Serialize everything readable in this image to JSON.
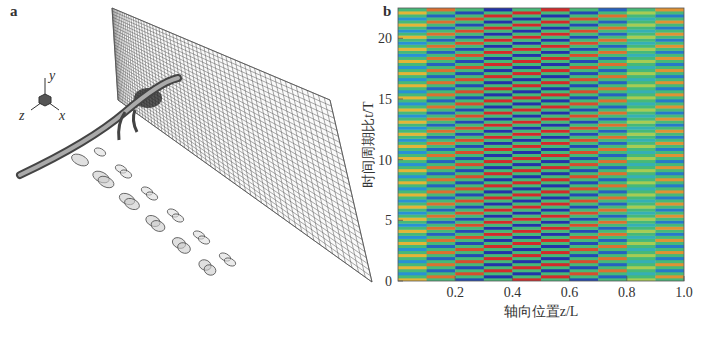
{
  "chart_data": [
    {
      "type": "image",
      "panel": "a",
      "axis_labels": [
        "y",
        "z",
        "x"
      ]
    },
    {
      "type": "heatmap",
      "panel": "b",
      "xlabel": "轴向位置z/L",
      "ylabel": "时间周期比t/T",
      "xlim": [
        0,
        1
      ],
      "ylim": [
        0,
        22.5
      ],
      "xticks": [
        0.2,
        0.4,
        0.6,
        0.8,
        {
          "value": 1,
          "label": "1.0"
        }
      ],
      "yticks": [
        0,
        5,
        10,
        15,
        20
      ],
      "zlim": [
        -1,
        1
      ],
      "x": [
        0.05,
        0.15,
        0.25,
        0.35,
        0.45,
        0.55,
        0.65,
        0.75,
        0.85,
        0.95
      ],
      "y": [
        0.125,
        0.375,
        0.625,
        0.875,
        1.125,
        1.375,
        1.625,
        1.875,
        2.125,
        2.375,
        2.625,
        2.875,
        3.125,
        3.375,
        3.625,
        3.875,
        4.125,
        4.375,
        4.625,
        4.875,
        5.125,
        5.375,
        5.625,
        5.875,
        6.125,
        6.375,
        6.625,
        6.875,
        7.125,
        7.375,
        7.625,
        7.875,
        8.125,
        8.375,
        8.625,
        8.875,
        9.125,
        9.375,
        9.625,
        9.875,
        10.125,
        10.375,
        10.625,
        10.875,
        11.125,
        11.375,
        11.625,
        11.875,
        12.125,
        12.375,
        12.625,
        12.875,
        13.125,
        13.375,
        13.625,
        13.875,
        14.125,
        14.375,
        14.625,
        14.875,
        15.125,
        15.375,
        15.625,
        15.875,
        16.125,
        16.375,
        16.625,
        16.875,
        17.125,
        17.375,
        17.625,
        17.875,
        18.125,
        18.375,
        18.625,
        18.875,
        19.125,
        19.375,
        19.625,
        19.875,
        20.125,
        20.375,
        20.625,
        20.875,
        21.125,
        21.375,
        21.625,
        21.875,
        22.125,
        22.375
      ],
      "cells": [
        [
          0.6,
          0,
          -0.9,
          0,
          1,
          0,
          -0.9,
          0,
          0.3,
          0
        ],
        [
          0,
          0.8,
          0,
          -1,
          0,
          1,
          0,
          -0.8,
          0,
          0.7
        ],
        [
          -0.6,
          0,
          0.9,
          0,
          -1,
          0,
          0.9,
          0,
          -0.3,
          0
        ],
        [
          0,
          -0.8,
          0,
          1,
          0,
          -1,
          0,
          0.8,
          0,
          -0.7
        ],
        [
          0.6,
          0,
          -0.9,
          0,
          1,
          0,
          -0.9,
          0,
          0.3,
          0
        ],
        [
          0,
          0.8,
          0,
          -1,
          0,
          1,
          0,
          -0.8,
          0,
          0.7
        ],
        [
          -0.6,
          0,
          0.9,
          0,
          -1,
          0,
          0.9,
          0,
          -0.3,
          0
        ],
        [
          0,
          -0.8,
          0,
          1,
          0,
          -1,
          0,
          0.8,
          0,
          -0.7
        ],
        [
          0.6,
          0,
          -0.9,
          0,
          1,
          0,
          -0.9,
          0,
          0.3,
          0
        ],
        [
          0,
          0.8,
          0,
          -1,
          0,
          1,
          0,
          -0.8,
          0,
          0.7
        ],
        [
          -0.6,
          0,
          0.9,
          0,
          -1,
          0,
          0.9,
          0,
          -0.3,
          0
        ],
        [
          0,
          -0.8,
          0,
          1,
          0,
          -1,
          0,
          0.8,
          0,
          -0.7
        ],
        [
          0.6,
          0,
          -0.9,
          0,
          1,
          0,
          -0.9,
          0,
          0.3,
          0
        ],
        [
          0,
          0.8,
          0,
          -1,
          0,
          1,
          0,
          -0.8,
          0,
          0.7
        ],
        [
          -0.6,
          0,
          0.9,
          0,
          -1,
          0,
          0.9,
          0,
          -0.3,
          0
        ],
        [
          0,
          -0.8,
          0,
          1,
          0,
          -1,
          0,
          0.8,
          0,
          -0.7
        ],
        [
          0.6,
          0,
          -0.9,
          0,
          1,
          0,
          -0.9,
          0,
          0.3,
          0
        ],
        [
          0,
          0.8,
          0,
          -1,
          0,
          1,
          0,
          -0.8,
          0,
          0.7
        ],
        [
          -0.6,
          0,
          0.9,
          0,
          -1,
          0,
          0.9,
          0,
          -0.3,
          0
        ],
        [
          0,
          -0.8,
          0,
          1,
          0,
          -1,
          0,
          0.8,
          0,
          -0.7
        ],
        [
          0.6,
          0,
          -0.9,
          0,
          1,
          0,
          -0.9,
          0,
          0.3,
          0
        ],
        [
          0,
          0.8,
          0,
          -1,
          0,
          1,
          0,
          -0.8,
          0,
          0.7
        ],
        [
          -0.6,
          0,
          0.9,
          0,
          -1,
          0,
          0.9,
          0,
          -0.3,
          0
        ],
        [
          0,
          -0.8,
          0,
          1,
          0,
          -1,
          0,
          0.8,
          0,
          -0.7
        ],
        [
          0.6,
          0,
          -0.9,
          0,
          1,
          0,
          -0.9,
          0,
          0.3,
          0
        ],
        [
          0,
          0.8,
          0,
          -1,
          0,
          1,
          0,
          -0.8,
          0,
          0.7
        ],
        [
          -0.6,
          0,
          0.9,
          0,
          -1,
          0,
          0.9,
          0,
          -0.3,
          0
        ],
        [
          0,
          -0.8,
          0,
          1,
          0,
          -1,
          0,
          0.8,
          0,
          -0.7
        ],
        [
          0.6,
          0,
          -0.9,
          0,
          1,
          0,
          -0.9,
          0,
          0.3,
          0
        ],
        [
          0,
          0.8,
          0,
          -1,
          0,
          1,
          0,
          -0.8,
          0,
          0.7
        ],
        [
          -0.6,
          0,
          0.9,
          0,
          -1,
          0,
          0.9,
          0,
          -0.3,
          0
        ],
        [
          0,
          -0.8,
          0,
          1,
          0,
          -1,
          0,
          0.8,
          0,
          -0.7
        ],
        [
          0.6,
          0,
          -0.9,
          0,
          1,
          0,
          -0.9,
          0,
          0.3,
          0
        ],
        [
          0,
          0.8,
          0,
          -1,
          0,
          1,
          0,
          -0.8,
          0,
          0.7
        ],
        [
          -0.6,
          0,
          0.9,
          0,
          -1,
          0,
          0.9,
          0,
          -0.3,
          0
        ],
        [
          0,
          -0.8,
          0,
          1,
          0,
          -1,
          0,
          0.8,
          0,
          -0.7
        ],
        [
          0.6,
          0,
          -0.9,
          0,
          1,
          0,
          -0.9,
          0,
          0.3,
          0
        ],
        [
          0,
          0.8,
          0,
          -1,
          0,
          1,
          0,
          -0.8,
          0,
          0.7
        ],
        [
          -0.6,
          0,
          0.9,
          0,
          -1,
          0,
          0.9,
          0,
          -0.3,
          0
        ],
        [
          0,
          -0.8,
          0,
          1,
          0,
          -1,
          0,
          0.8,
          0,
          -0.7
        ],
        [
          0.6,
          0,
          -0.9,
          0,
          1,
          0,
          -0.9,
          0,
          0.3,
          0
        ],
        [
          0,
          0.8,
          0,
          -1,
          0,
          1,
          0,
          -0.8,
          0,
          0.7
        ],
        [
          -0.6,
          0,
          0.9,
          0,
          -1,
          0,
          0.9,
          0,
          -0.3,
          0
        ],
        [
          0,
          -0.8,
          0,
          1,
          0,
          -1,
          0,
          0.8,
          0,
          -0.7
        ],
        [
          0.6,
          0,
          -0.9,
          0,
          1,
          0,
          -0.9,
          0,
          0.3,
          0
        ],
        [
          0,
          0.8,
          0,
          -1,
          0,
          1,
          0,
          -0.8,
          0,
          0.7
        ],
        [
          -0.6,
          0,
          0.9,
          0,
          -1,
          0,
          0.9,
          0,
          -0.3,
          0
        ],
        [
          0,
          -0.8,
          0,
          1,
          0,
          -1,
          0,
          0.8,
          0,
          -0.7
        ],
        [
          0.6,
          0,
          -0.9,
          0,
          1,
          0,
          -0.9,
          0,
          0.3,
          0
        ],
        [
          0,
          0.8,
          0,
          -1,
          0,
          1,
          0,
          -0.8,
          0,
          0.7
        ],
        [
          -0.6,
          0,
          0.9,
          0,
          -1,
          0,
          0.9,
          0,
          -0.3,
          0
        ],
        [
          0,
          -0.8,
          0,
          1,
          0,
          -1,
          0,
          0.8,
          0,
          -0.7
        ],
        [
          0.6,
          0,
          -0.9,
          0,
          1,
          0,
          -0.9,
          0,
          0.3,
          0
        ],
        [
          0,
          0.8,
          0,
          -1,
          0,
          1,
          0,
          -0.8,
          0,
          0.7
        ],
        [
          -0.6,
          0,
          0.9,
          0,
          -1,
          0,
          0.9,
          0,
          -0.3,
          0
        ],
        [
          0,
          -0.8,
          0,
          1,
          0,
          -1,
          0,
          0.8,
          0,
          -0.7
        ],
        [
          0.6,
          0,
          -0.9,
          0,
          1,
          0,
          -0.9,
          0,
          0.3,
          0
        ],
        [
          0,
          0.8,
          0,
          -1,
          0,
          1,
          0,
          -0.8,
          0,
          0.7
        ],
        [
          -0.6,
          0,
          0.9,
          0,
          -1,
          0,
          0.9,
          0,
          -0.3,
          0
        ],
        [
          0,
          -0.8,
          0,
          1,
          0,
          -1,
          0,
          0.8,
          0,
          -0.7
        ],
        [
          0.6,
          0,
          -0.9,
          0,
          1,
          0,
          -0.9,
          0,
          0.3,
          0
        ],
        [
          0,
          0.8,
          0,
          -1,
          0,
          1,
          0,
          -0.8,
          0,
          0.7
        ],
        [
          -0.6,
          0,
          0.9,
          0,
          -1,
          0,
          0.9,
          0,
          -0.3,
          0
        ],
        [
          0,
          -0.8,
          0,
          1,
          0,
          -1,
          0,
          0.8,
          0,
          -0.7
        ],
        [
          0.6,
          0,
          -0.9,
          0,
          1,
          0,
          -0.9,
          0,
          0.3,
          0
        ],
        [
          0,
          0.8,
          0,
          -1,
          0,
          1,
          0,
          -0.8,
          0,
          0.7
        ],
        [
          -0.6,
          0,
          0.9,
          0,
          -1,
          0,
          0.9,
          0,
          -0.3,
          0
        ],
        [
          0,
          -0.8,
          0,
          1,
          0,
          -1,
          0,
          0.8,
          0,
          -0.7
        ],
        [
          0.6,
          0,
          -0.9,
          0,
          1,
          0,
          -0.9,
          0,
          0.3,
          0
        ],
        [
          0,
          0.8,
          0,
          -1,
          0,
          1,
          0,
          -0.8,
          0,
          0.7
        ],
        [
          -0.6,
          0,
          0.9,
          0,
          -1,
          0,
          0.9,
          0,
          -0.3,
          0
        ],
        [
          0,
          -0.8,
          0,
          1,
          0,
          -1,
          0,
          0.8,
          0,
          -0.7
        ],
        [
          0.6,
          0,
          -0.9,
          0,
          1,
          0,
          -0.9,
          0,
          0.3,
          0
        ],
        [
          0,
          0.8,
          0,
          -1,
          0,
          1,
          0,
          -0.8,
          0,
          0.7
        ],
        [
          -0.6,
          0,
          0.9,
          0,
          -1,
          0,
          0.9,
          0,
          -0.3,
          0
        ],
        [
          0,
          -0.8,
          0,
          1,
          0,
          -1,
          0,
          0.8,
          0,
          -0.7
        ],
        [
          0.6,
          0,
          -0.9,
          0,
          1,
          0,
          -0.9,
          0,
          0.3,
          0
        ],
        [
          0,
          0.8,
          0,
          -1,
          0,
          1,
          0,
          -0.8,
          0,
          0.7
        ],
        [
          -0.6,
          0,
          0.9,
          0,
          -1,
          0,
          0.9,
          0,
          -0.3,
          0
        ],
        [
          0,
          -0.8,
          0,
          1,
          0,
          -1,
          0,
          0.8,
          0,
          -0.7
        ],
        [
          0.6,
          0,
          -0.9,
          0,
          1,
          0,
          -0.9,
          0,
          0.3,
          0
        ],
        [
          0,
          0.8,
          0,
          -1,
          0,
          1,
          0,
          -0.8,
          0,
          0.7
        ],
        [
          -0.6,
          0,
          0.9,
          0,
          -1,
          0,
          0.9,
          0,
          -0.3,
          0
        ],
        [
          0,
          -0.8,
          0,
          1,
          0,
          -1,
          0,
          0.8,
          0,
          -0.7
        ],
        [
          0.6,
          0,
          -0.9,
          0,
          1,
          0,
          -0.9,
          0,
          0.3,
          0
        ],
        [
          0,
          0.8,
          0,
          -1,
          0,
          1,
          0,
          -0.8,
          0,
          0.7
        ],
        [
          -0.6,
          0,
          0.9,
          0,
          -1,
          0,
          0.9,
          0,
          -0.3,
          0
        ],
        [
          0,
          -0.8,
          0,
          1,
          0,
          -1,
          0,
          0.8,
          0,
          -0.7
        ],
        [
          0.6,
          0,
          -0.9,
          0,
          1,
          0,
          -0.9,
          0,
          0.3,
          0
        ],
        [
          0,
          0.8,
          0,
          -1,
          0,
          1,
          0,
          -0.8,
          0,
          0.7
        ]
      ]
    }
  ]
}
